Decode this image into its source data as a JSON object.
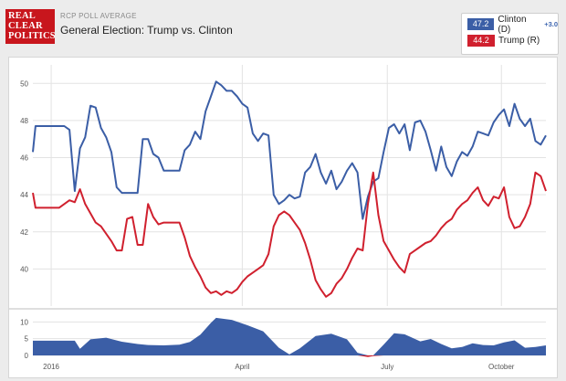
{
  "header": {
    "logo_lines": [
      "REAL",
      "CLEAR",
      "POLITICS"
    ],
    "kicker": "RCP POLL AVERAGE",
    "title": "General Election: Trump vs. Clinton"
  },
  "legend": [
    {
      "value": "47.2",
      "name": "Clinton (D)",
      "spread": "+3.0",
      "color": "#3b5ea6"
    },
    {
      "value": "44.2",
      "name": "Trump (R)",
      "spread": "",
      "color": "#d0202e"
    }
  ],
  "chart_data": [
    {
      "type": "line",
      "title": "General Election: Trump vs. Clinton",
      "x_ticks": [
        "2016",
        "April",
        "July",
        "October"
      ],
      "x_range": [
        "2015-11",
        "2016-11-08"
      ],
      "ylim": [
        38,
        51
      ],
      "y_ticks": [
        40,
        42,
        44,
        46,
        48,
        50
      ],
      "grid": true,
      "series": [
        {
          "name": "Clinton (D)",
          "color": "#3b5ea6",
          "points": [
            [
              0,
              46.3
            ],
            [
              0.5,
              47.7
            ],
            [
              6,
              47.7
            ],
            [
              7,
              47.5
            ],
            [
              8,
              44.2
            ],
            [
              9,
              46.5
            ],
            [
              10,
              47.1
            ],
            [
              11,
              48.8
            ],
            [
              12,
              48.7
            ],
            [
              13,
              47.6
            ],
            [
              14,
              47.1
            ],
            [
              15,
              46.3
            ],
            [
              16,
              44.4
            ],
            [
              17,
              44.1
            ],
            [
              20,
              44.1
            ],
            [
              21,
              47.0
            ],
            [
              22,
              47.0
            ],
            [
              23,
              46.2
            ],
            [
              24,
              46.0
            ],
            [
              25,
              45.3
            ],
            [
              28,
              45.3
            ],
            [
              29,
              46.4
            ],
            [
              30,
              46.7
            ],
            [
              31,
              47.4
            ],
            [
              32,
              47.0
            ],
            [
              33,
              48.5
            ],
            [
              34,
              49.3
            ],
            [
              35,
              50.1
            ],
            [
              36,
              49.9
            ],
            [
              37,
              49.6
            ],
            [
              38,
              49.6
            ],
            [
              39,
              49.3
            ],
            [
              40,
              48.9
            ],
            [
              41,
              48.7
            ],
            [
              42,
              47.3
            ],
            [
              43,
              46.9
            ],
            [
              44,
              47.3
            ],
            [
              45,
              47.2
            ],
            [
              46,
              44.0
            ],
            [
              47,
              43.5
            ],
            [
              48,
              43.7
            ],
            [
              49,
              44.0
            ],
            [
              50,
              43.8
            ],
            [
              51,
              43.9
            ],
            [
              52,
              45.2
            ],
            [
              53,
              45.5
            ],
            [
              54,
              46.2
            ],
            [
              55,
              45.2
            ],
            [
              56,
              44.6
            ],
            [
              57,
              45.3
            ],
            [
              58,
              44.3
            ],
            [
              59,
              44.7
            ],
            [
              60,
              45.3
            ],
            [
              61,
              45.7
            ],
            [
              62,
              45.2
            ],
            [
              63,
              42.7
            ],
            [
              64,
              43.9
            ],
            [
              65,
              44.7
            ],
            [
              66,
              44.9
            ],
            [
              67,
              46.3
            ],
            [
              68,
              47.6
            ],
            [
              69,
              47.8
            ],
            [
              70,
              47.3
            ],
            [
              71,
              47.8
            ],
            [
              72,
              46.4
            ],
            [
              73,
              47.9
            ],
            [
              74,
              48.0
            ],
            [
              75,
              47.4
            ],
            [
              76,
              46.4
            ],
            [
              77,
              45.3
            ],
            [
              78,
              46.6
            ],
            [
              79,
              45.5
            ],
            [
              80,
              45.0
            ],
            [
              81,
              45.8
            ],
            [
              82,
              46.3
            ],
            [
              83,
              46.1
            ],
            [
              84,
              46.6
            ],
            [
              85,
              47.4
            ],
            [
              86,
              47.3
            ],
            [
              87,
              47.2
            ],
            [
              88,
              47.9
            ],
            [
              89,
              48.3
            ],
            [
              90,
              48.6
            ],
            [
              91,
              47.7
            ],
            [
              92,
              48.9
            ],
            [
              93,
              48.1
            ],
            [
              94,
              47.7
            ],
            [
              95,
              48.1
            ],
            [
              96,
              46.9
            ],
            [
              97,
              46.7
            ],
            [
              98,
              47.2
            ]
          ]
        },
        {
          "name": "Trump (R)",
          "color": "#d0202e",
          "points": [
            [
              0,
              44.1
            ],
            [
              0.5,
              43.3
            ],
            [
              5,
              43.3
            ],
            [
              6,
              43.5
            ],
            [
              7,
              43.7
            ],
            [
              8,
              43.6
            ],
            [
              9,
              44.3
            ],
            [
              10,
              43.5
            ],
            [
              11,
              43.0
            ],
            [
              12,
              42.5
            ],
            [
              13,
              42.3
            ],
            [
              14,
              41.9
            ],
            [
              15,
              41.5
            ],
            [
              16,
              41.0
            ],
            [
              17,
              41.0
            ],
            [
              18,
              42.7
            ],
            [
              19,
              42.8
            ],
            [
              20,
              41.3
            ],
            [
              21,
              41.3
            ],
            [
              22,
              43.5
            ],
            [
              23,
              42.8
            ],
            [
              24,
              42.4
            ],
            [
              25,
              42.5
            ],
            [
              28,
              42.5
            ],
            [
              29,
              41.7
            ],
            [
              30,
              40.7
            ],
            [
              31,
              40.1
            ],
            [
              32,
              39.6
            ],
            [
              33,
              39.0
            ],
            [
              34,
              38.7
            ],
            [
              35,
              38.8
            ],
            [
              36,
              38.6
            ],
            [
              37,
              38.8
            ],
            [
              38,
              38.7
            ],
            [
              39,
              38.9
            ],
            [
              40,
              39.3
            ],
            [
              41,
              39.6
            ],
            [
              42,
              39.8
            ],
            [
              43,
              40.0
            ],
            [
              44,
              40.2
            ],
            [
              45,
              40.8
            ],
            [
              46,
              42.3
            ],
            [
              47,
              42.9
            ],
            [
              48,
              43.1
            ],
            [
              49,
              42.9
            ],
            [
              50,
              42.5
            ],
            [
              51,
              42.1
            ],
            [
              52,
              41.4
            ],
            [
              53,
              40.5
            ],
            [
              54,
              39.4
            ],
            [
              55,
              38.9
            ],
            [
              56,
              38.5
            ],
            [
              57,
              38.7
            ],
            [
              58,
              39.2
            ],
            [
              59,
              39.5
            ],
            [
              60,
              40.0
            ],
            [
              61,
              40.6
            ],
            [
              62,
              41.1
            ],
            [
              63,
              41.0
            ],
            [
              64,
              43.5
            ],
            [
              65,
              45.2
            ],
            [
              66,
              42.9
            ],
            [
              67,
              41.5
            ],
            [
              68,
              41.0
            ],
            [
              69,
              40.5
            ],
            [
              70,
              40.1
            ],
            [
              71,
              39.8
            ],
            [
              72,
              40.8
            ],
            [
              73,
              41.0
            ],
            [
              74,
              41.2
            ],
            [
              75,
              41.4
            ],
            [
              76,
              41.5
            ],
            [
              77,
              41.8
            ],
            [
              78,
              42.2
            ],
            [
              79,
              42.5
            ],
            [
              80,
              42.7
            ],
            [
              81,
              43.2
            ],
            [
              82,
              43.5
            ],
            [
              83,
              43.7
            ],
            [
              84,
              44.1
            ],
            [
              85,
              44.4
            ],
            [
              86,
              43.7
            ],
            [
              87,
              43.4
            ],
            [
              88,
              43.9
            ],
            [
              89,
              43.8
            ],
            [
              90,
              44.4
            ],
            [
              91,
              42.8
            ],
            [
              92,
              42.2
            ],
            [
              93,
              42.3
            ],
            [
              94,
              42.8
            ],
            [
              95,
              43.5
            ],
            [
              96,
              45.2
            ],
            [
              97,
              45.0
            ],
            [
              98,
              44.2
            ]
          ]
        }
      ]
    },
    {
      "type": "area",
      "title": "",
      "ylim": [
        0,
        12
      ],
      "y_ticks": [
        0,
        5,
        10
      ],
      "series": [
        {
          "name": "",
          "color": "#3b5ea6",
          "points": [
            [
              0,
              4.4
            ],
            [
              8,
              4.4
            ],
            [
              9,
              2.0
            ],
            [
              11,
              4.8
            ],
            [
              14,
              5.3
            ],
            [
              17,
              4.1
            ],
            [
              20,
              3.4
            ],
            [
              22,
              3.1
            ],
            [
              25,
              3.0
            ],
            [
              28,
              3.2
            ],
            [
              30,
              4.0
            ],
            [
              32,
              6.2
            ],
            [
              34,
              9.7
            ],
            [
              35,
              11.2
            ],
            [
              38,
              10.6
            ],
            [
              41,
              9.0
            ],
            [
              44,
              7.2
            ],
            [
              47,
              2.3
            ],
            [
              49,
              0.3
            ],
            [
              51,
              2.1
            ],
            [
              54,
              5.8
            ],
            [
              57,
              6.5
            ],
            [
              60,
              4.8
            ],
            [
              62,
              0.8
            ],
            [
              64,
              -0.5
            ],
            [
              65,
              -0.2
            ],
            [
              67,
              3.2
            ],
            [
              69,
              6.6
            ],
            [
              71,
              6.3
            ],
            [
              74,
              4.2
            ],
            [
              76,
              4.9
            ],
            [
              78,
              3.4
            ],
            [
              80,
              2.1
            ],
            [
              82,
              2.5
            ],
            [
              84,
              3.6
            ],
            [
              86,
              3.1
            ],
            [
              88,
              3.0
            ],
            [
              90,
              3.9
            ],
            [
              92,
              4.5
            ],
            [
              94,
              2.3
            ],
            [
              96,
              2.5
            ],
            [
              98,
              3.0
            ]
          ]
        }
      ]
    }
  ]
}
